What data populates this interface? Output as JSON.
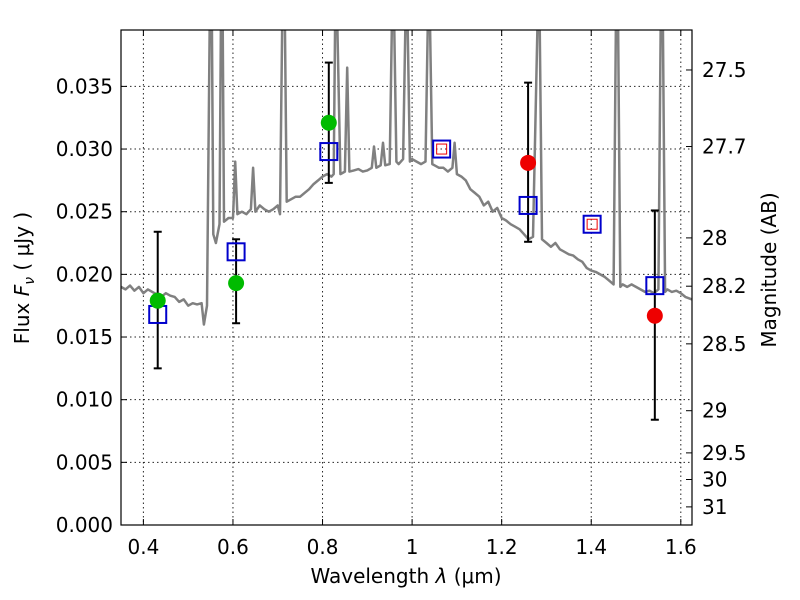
{
  "chart_data": {
    "type": "scatter",
    "xlabel_prefix": "Wavelength",
    "xlabel_symbol": "λ",
    "xlabel_unit": "(μm)",
    "ylabel_prefix": "Flux",
    "ylabel_symbol": "F",
    "ylabel_sub": "ν",
    "ylabel_unit": "( μJy )",
    "y2label": "Magnitude (AB)",
    "xlim": [
      0.35,
      1.625
    ],
    "ylim": [
      0.0,
      0.0395
    ],
    "xticks": [
      0.4,
      0.6,
      0.8,
      1.0,
      1.2,
      1.4,
      1.6
    ],
    "xtick_labels": [
      "0.4",
      "0.6",
      "0.8",
      "1",
      "1.2",
      "1.4",
      "1.6"
    ],
    "yticks": [
      0.0,
      0.005,
      0.01,
      0.015,
      0.02,
      0.025,
      0.03,
      0.035
    ],
    "ytick_labels": [
      "0.000",
      "0.005",
      "0.010",
      "0.015",
      "0.020",
      "0.025",
      "0.030",
      "0.035"
    ],
    "y2ticks": [
      {
        "mag": 27.5,
        "label": "27.5"
      },
      {
        "mag": 27.7,
        "label": "27.7"
      },
      {
        "mag": 28.0,
        "label": "28"
      },
      {
        "mag": 28.2,
        "label": "28.2"
      },
      {
        "mag": 28.5,
        "label": "28.5"
      },
      {
        "mag": 29.0,
        "label": "29"
      },
      {
        "mag": 29.5,
        "label": "29.5"
      },
      {
        "mag": 30.0,
        "label": "30"
      },
      {
        "mag": 31.0,
        "label": "31"
      }
    ],
    "grid": true,
    "colors": {
      "spectrum": "#808080",
      "model": "#0000cc",
      "green": "#00bb00",
      "red": "#ee0000",
      "errorbar": "#000000"
    },
    "spectrum": [
      [
        0.35,
        0.019
      ],
      [
        0.36,
        0.0188
      ],
      [
        0.37,
        0.0191
      ],
      [
        0.38,
        0.0187
      ],
      [
        0.39,
        0.019
      ],
      [
        0.4,
        0.0185
      ],
      [
        0.41,
        0.0188
      ],
      [
        0.42,
        0.0186
      ],
      [
        0.43,
        0.0184
      ],
      [
        0.44,
        0.0182
      ],
      [
        0.45,
        0.0185
      ],
      [
        0.46,
        0.0183
      ],
      [
        0.47,
        0.0182
      ],
      [
        0.48,
        0.0178
      ],
      [
        0.49,
        0.018
      ],
      [
        0.5,
        0.0175
      ],
      [
        0.51,
        0.0177
      ],
      [
        0.52,
        0.0176
      ],
      [
        0.53,
        0.0177
      ],
      [
        0.535,
        0.016
      ],
      [
        0.542,
        0.0175
      ],
      [
        0.548,
        0.04
      ],
      [
        0.553,
        0.04
      ],
      [
        0.556,
        0.0232
      ],
      [
        0.562,
        0.0225
      ],
      [
        0.57,
        0.024
      ],
      [
        0.573,
        0.04
      ],
      [
        0.577,
        0.04
      ],
      [
        0.58,
        0.0242
      ],
      [
        0.59,
        0.0245
      ],
      [
        0.6,
        0.0245
      ],
      [
        0.605,
        0.029
      ],
      [
        0.61,
        0.0248
      ],
      [
        0.62,
        0.025
      ],
      [
        0.63,
        0.0248
      ],
      [
        0.64,
        0.0252
      ],
      [
        0.645,
        0.0285
      ],
      [
        0.65,
        0.025
      ],
      [
        0.66,
        0.0255
      ],
      [
        0.67,
        0.0252
      ],
      [
        0.68,
        0.025
      ],
      [
        0.69,
        0.0252
      ],
      [
        0.7,
        0.0255
      ],
      [
        0.705,
        0.0248
      ],
      [
        0.71,
        0.04
      ],
      [
        0.716,
        0.04
      ],
      [
        0.72,
        0.0258
      ],
      [
        0.73,
        0.026
      ],
      [
        0.74,
        0.0262
      ],
      [
        0.75,
        0.0262
      ],
      [
        0.76,
        0.0265
      ],
      [
        0.77,
        0.0268
      ],
      [
        0.78,
        0.0272
      ],
      [
        0.79,
        0.0275
      ],
      [
        0.8,
        0.0278
      ],
      [
        0.81,
        0.028
      ],
      [
        0.82,
        0.0278
      ],
      [
        0.825,
        0.028
      ],
      [
        0.828,
        0.04
      ],
      [
        0.833,
        0.04
      ],
      [
        0.84,
        0.028
      ],
      [
        0.85,
        0.0282
      ],
      [
        0.855,
        0.0365
      ],
      [
        0.86,
        0.0282
      ],
      [
        0.87,
        0.0283
      ],
      [
        0.88,
        0.0284
      ],
      [
        0.89,
        0.0282
      ],
      [
        0.9,
        0.0283
      ],
      [
        0.91,
        0.0285
      ],
      [
        0.915,
        0.0302
      ],
      [
        0.92,
        0.0285
      ],
      [
        0.93,
        0.0287
      ],
      [
        0.935,
        0.0305
      ],
      [
        0.94,
        0.0287
      ],
      [
        0.95,
        0.0288
      ],
      [
        0.955,
        0.04
      ],
      [
        0.96,
        0.04
      ],
      [
        0.965,
        0.029
      ],
      [
        0.97,
        0.0288
      ],
      [
        0.98,
        0.0292
      ],
      [
        0.985,
        0.04
      ],
      [
        0.99,
        0.04
      ],
      [
        0.995,
        0.029
      ],
      [
        1.0,
        0.0292
      ],
      [
        1.01,
        0.029
      ],
      [
        1.02,
        0.0288
      ],
      [
        1.03,
        0.029
      ],
      [
        1.035,
        0.04
      ],
      [
        1.04,
        0.04
      ],
      [
        1.045,
        0.0288
      ],
      [
        1.05,
        0.0287
      ],
      [
        1.06,
        0.0285
      ],
      [
        1.07,
        0.0285
      ],
      [
        1.08,
        0.0282
      ],
      [
        1.09,
        0.0285
      ],
      [
        1.095,
        0.0305
      ],
      [
        1.1,
        0.028
      ],
      [
        1.11,
        0.0278
      ],
      [
        1.12,
        0.0275
      ],
      [
        1.13,
        0.0268
      ],
      [
        1.14,
        0.0265
      ],
      [
        1.15,
        0.0262
      ],
      [
        1.16,
        0.0255
      ],
      [
        1.17,
        0.0258
      ],
      [
        1.18,
        0.025
      ],
      [
        1.19,
        0.0253
      ],
      [
        1.2,
        0.0245
      ],
      [
        1.21,
        0.0243
      ],
      [
        1.22,
        0.024
      ],
      [
        1.23,
        0.0238
      ],
      [
        1.24,
        0.0236
      ],
      [
        1.25,
        0.0232
      ],
      [
        1.26,
        0.0228
      ],
      [
        1.27,
        0.023
      ],
      [
        1.28,
        0.04
      ],
      [
        1.285,
        0.04
      ],
      [
        1.29,
        0.0228
      ],
      [
        1.3,
        0.0225
      ],
      [
        1.31,
        0.0222
      ],
      [
        1.32,
        0.0225
      ],
      [
        1.33,
        0.022
      ],
      [
        1.34,
        0.0218
      ],
      [
        1.35,
        0.0216
      ],
      [
        1.36,
        0.0215
      ],
      [
        1.37,
        0.0212
      ],
      [
        1.38,
        0.021
      ],
      [
        1.39,
        0.0205
      ],
      [
        1.4,
        0.0203
      ],
      [
        1.41,
        0.0202
      ],
      [
        1.42,
        0.02
      ],
      [
        1.43,
        0.0198
      ],
      [
        1.44,
        0.0195
      ],
      [
        1.45,
        0.0192
      ],
      [
        1.455,
        0.04
      ],
      [
        1.46,
        0.04
      ],
      [
        1.465,
        0.019
      ],
      [
        1.47,
        0.0192
      ],
      [
        1.48,
        0.019
      ],
      [
        1.49,
        0.0192
      ],
      [
        1.5,
        0.019
      ],
      [
        1.51,
        0.0188
      ],
      [
        1.52,
        0.0186
      ],
      [
        1.53,
        0.0187
      ],
      [
        1.54,
        0.0185
      ],
      [
        1.55,
        0.0188
      ],
      [
        1.555,
        0.04
      ],
      [
        1.56,
        0.04
      ],
      [
        1.565,
        0.0186
      ],
      [
        1.57,
        0.0188
      ],
      [
        1.58,
        0.0186
      ],
      [
        1.59,
        0.0187
      ],
      [
        1.6,
        0.0185
      ],
      [
        1.61,
        0.0182
      ],
      [
        1.625,
        0.018
      ]
    ],
    "model_squares": [
      {
        "x": 0.432,
        "y": 0.0168
      },
      {
        "x": 0.607,
        "y": 0.0218
      },
      {
        "x": 0.814,
        "y": 0.0298
      },
      {
        "x": 1.066,
        "y": 0.03
      },
      {
        "x": 1.259,
        "y": 0.0255
      },
      {
        "x": 1.402,
        "y": 0.024
      },
      {
        "x": 1.542,
        "y": 0.0191
      }
    ],
    "observed_green": [
      {
        "x": 0.432,
        "y": 0.0179,
        "yerr_low": 0.0125,
        "yerr_high": 0.0234
      },
      {
        "x": 0.607,
        "y": 0.0193,
        "yerr_low": 0.0161,
        "yerr_high": 0.0228
      },
      {
        "x": 0.814,
        "y": 0.0321,
        "yerr_low": 0.0273,
        "yerr_high": 0.0369
      }
    ],
    "observed_red": [
      {
        "x": 1.259,
        "y": 0.0289,
        "yerr_low": 0.0226,
        "yerr_high": 0.0353
      },
      {
        "x": 1.542,
        "y": 0.0167,
        "yerr_low": 0.0084,
        "yerr_high": 0.0251
      }
    ],
    "small_markers": [
      {
        "x": 1.066,
        "y": 0.03
      },
      {
        "x": 1.402,
        "y": 0.024
      }
    ]
  }
}
